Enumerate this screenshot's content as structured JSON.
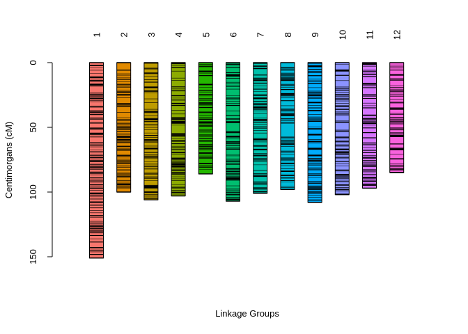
{
  "chart_data": {
    "type": "linkage-map",
    "xlabel": "Linkage Groups",
    "ylabel": "Centimorgans (cM)",
    "ylim": [
      0,
      160
    ],
    "y_reversed": true,
    "yticks": [
      0,
      50,
      100,
      150
    ],
    "grid": false,
    "legend": "none",
    "groups": [
      {
        "name": "1",
        "length": 151,
        "color": "#F8766D"
      },
      {
        "name": "2",
        "length": 100,
        "color": "#E18A00"
      },
      {
        "name": "3",
        "length": 106,
        "color": "#BE9C00"
      },
      {
        "name": "4",
        "length": 103,
        "color": "#8CAB00"
      },
      {
        "name": "5",
        "length": 86,
        "color": "#24B700"
      },
      {
        "name": "6",
        "length": 107,
        "color": "#00BE70"
      },
      {
        "name": "7",
        "length": 101,
        "color": "#00C1AB"
      },
      {
        "name": "8",
        "length": 98,
        "color": "#00BBDA"
      },
      {
        "name": "9",
        "length": 108,
        "color": "#00ACFC"
      },
      {
        "name": "10",
        "length": 102,
        "color": "#8B93FF"
      },
      {
        "name": "11",
        "length": 97,
        "color": "#D575FE"
      },
      {
        "name": "12",
        "length": 85,
        "color": "#F962DD"
      }
    ]
  }
}
